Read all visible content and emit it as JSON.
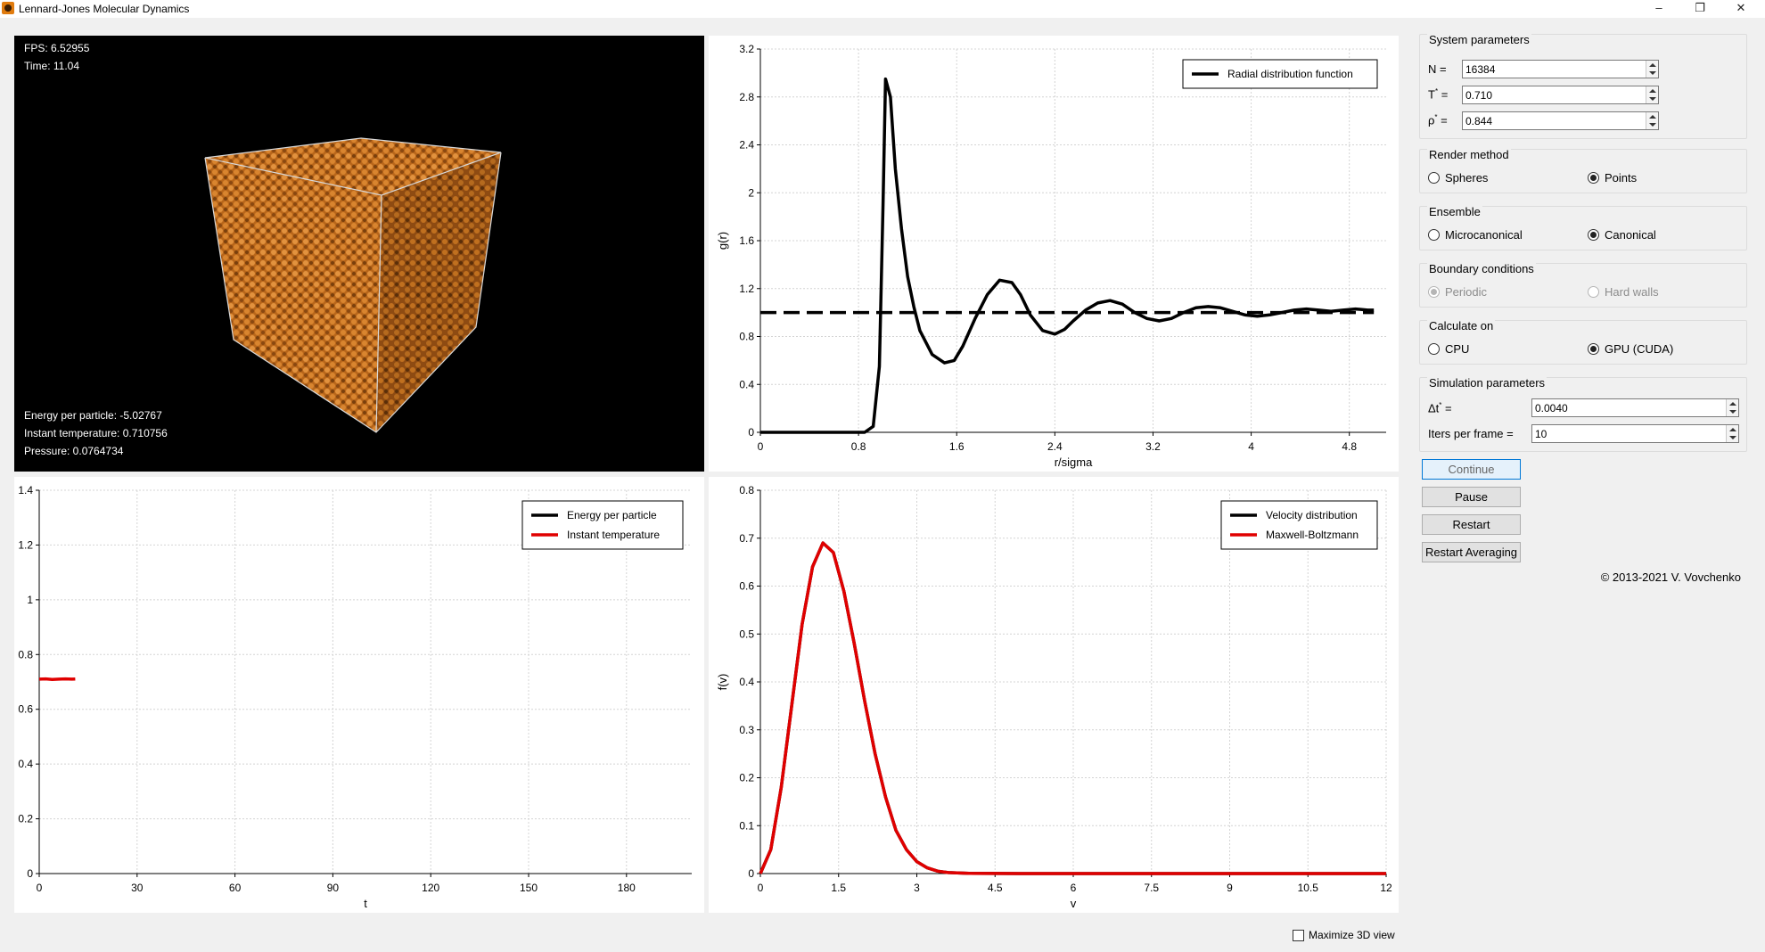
{
  "window": {
    "title": "Lennard-Jones Molecular Dynamics",
    "minimize_glyph": "–",
    "restore_glyph": "❐",
    "close_glyph": "✕"
  },
  "view3d": {
    "fps_text": "FPS: 6.52955",
    "time_text": "Time: 11.04",
    "energy_text": "Energy per particle: -5.02767",
    "temperature_text": "Instant temperature: 0.710756",
    "pressure_text": "Pressure: 0.0764734",
    "particle_color": "#c8761f"
  },
  "controls": {
    "system": {
      "title": "System parameters",
      "n_label": "N =",
      "n_value": "16384",
      "t_label": "T",
      "t_suffix": " =",
      "t_value": "0.710",
      "rho_label": "ρ",
      "rho_suffix": " =",
      "rho_value": "0.844",
      "star": "*"
    },
    "render": {
      "title": "Render method",
      "opt1": "Spheres",
      "opt2": "Points",
      "selected": 2
    },
    "ensemble": {
      "title": "Ensemble",
      "opt1": "Microcanonical",
      "opt2": "Canonical",
      "selected": 2
    },
    "boundary": {
      "title": "Boundary conditions",
      "opt1": "Periodic",
      "opt2": "Hard walls",
      "selected": 1
    },
    "calc": {
      "title": "Calculate on",
      "opt1": "CPU",
      "opt2": "GPU (CUDA)",
      "selected": 2
    },
    "sim": {
      "title": "Simulation parameters",
      "dt_label": "Δt",
      "dt_suffix": " =",
      "dt_value": "0.0040",
      "iters_label": "Iters per frame =",
      "iters_value": "10"
    },
    "buttons": {
      "continue": "Continue",
      "pause": "Pause",
      "restart": "Restart",
      "restart_avg": "Restart Averaging"
    },
    "copyright": "© 2013-2021 V. Vovchenko",
    "maximize_label": "Maximize 3D view"
  },
  "chart_data": [
    {
      "id": "rdf",
      "type": "line",
      "xlabel": "r/sigma",
      "ylabel": "g(r)",
      "xlim": [
        0,
        5.1
      ],
      "ylim": [
        0,
        3.2
      ],
      "xticks": [
        0,
        0.8,
        1.6,
        2.4,
        3.2,
        4,
        4.8
      ],
      "xtick_labels": [
        "0",
        "0.8",
        "1.6",
        "2.4",
        "3.2",
        "4",
        "4.8"
      ],
      "yticks": [
        0,
        0.4,
        0.8,
        1.2,
        1.6,
        2,
        2.4,
        2.8,
        3.2
      ],
      "ytick_labels": [
        "0",
        "0.4",
        "0.8",
        "1.2",
        "1.6",
        "2",
        "2.4",
        "2.8",
        "3.2"
      ],
      "legend": "top-right",
      "grid": true,
      "series": [
        {
          "name": "Radial distribution function",
          "color": "#000000",
          "style": "solid",
          "x": [
            0,
            0.85,
            0.92,
            0.97,
            1.0,
            1.02,
            1.06,
            1.1,
            1.15,
            1.2,
            1.25,
            1.3,
            1.4,
            1.5,
            1.58,
            1.65,
            1.75,
            1.85,
            1.95,
            2.05,
            2.12,
            2.2,
            2.3,
            2.4,
            2.48,
            2.55,
            2.65,
            2.75,
            2.85,
            2.95,
            3.05,
            3.15,
            3.25,
            3.35,
            3.45,
            3.55,
            3.65,
            3.75,
            3.85,
            3.95,
            4.05,
            4.15,
            4.25,
            4.35,
            4.45,
            4.55,
            4.65,
            4.75,
            4.85,
            4.95,
            5.0
          ],
          "y": [
            0,
            0,
            0.05,
            0.55,
            1.9,
            2.95,
            2.8,
            2.2,
            1.7,
            1.3,
            1.05,
            0.85,
            0.65,
            0.58,
            0.6,
            0.72,
            0.95,
            1.15,
            1.27,
            1.25,
            1.15,
            0.98,
            0.85,
            0.82,
            0.86,
            0.93,
            1.02,
            1.08,
            1.1,
            1.07,
            1.0,
            0.95,
            0.93,
            0.95,
            1.0,
            1.04,
            1.05,
            1.04,
            1.01,
            0.98,
            0.97,
            0.98,
            1.0,
            1.02,
            1.03,
            1.02,
            1.01,
            1.02,
            1.03,
            1.02,
            1.02
          ]
        },
        {
          "name": "",
          "color": "#000000",
          "style": "dashed",
          "x": [
            0,
            5.0
          ],
          "y": [
            1,
            1
          ]
        }
      ]
    },
    {
      "id": "energy",
      "type": "line",
      "xlabel": "t",
      "ylabel": "",
      "xlim": [
        0,
        200
      ],
      "ylim": [
        0,
        1.4
      ],
      "xticks": [
        0,
        30,
        60,
        90,
        120,
        150,
        180
      ],
      "xtick_labels": [
        "0",
        "30",
        "60",
        "90",
        "120",
        "150",
        "180"
      ],
      "yticks": [
        0,
        0.2,
        0.4,
        0.6,
        0.8,
        1,
        1.2,
        1.4
      ],
      "ytick_labels": [
        "0",
        "0.2",
        "0.4",
        "0.6",
        "0.8",
        "1",
        "1.2",
        "1.4"
      ],
      "legend": "top-right",
      "grid": true,
      "series": [
        {
          "name": "Energy per particle",
          "color": "#000000",
          "style": "solid",
          "x": [],
          "y": []
        },
        {
          "name": "Instant temperature",
          "color": "#e00000",
          "style": "solid",
          "x": [
            0,
            2,
            4,
            6,
            8,
            10,
            11.04
          ],
          "y": [
            0.71,
            0.711,
            0.709,
            0.71,
            0.711,
            0.71,
            0.7108
          ]
        }
      ]
    },
    {
      "id": "velocity",
      "type": "line",
      "xlabel": "v",
      "ylabel": "f(v)",
      "xlim": [
        0,
        12
      ],
      "ylim": [
        0,
        0.8
      ],
      "xticks": [
        0,
        1.5,
        3,
        4.5,
        6,
        7.5,
        9,
        10.5,
        12
      ],
      "xtick_labels": [
        "0",
        "1.5",
        "3",
        "4.5",
        "6",
        "7.5",
        "9",
        "10.5",
        "12"
      ],
      "yticks": [
        0,
        0.1,
        0.2,
        0.3,
        0.4,
        0.5,
        0.6,
        0.7,
        0.8
      ],
      "ytick_labels": [
        "0",
        "0.1",
        "0.2",
        "0.3",
        "0.4",
        "0.5",
        "0.6",
        "0.7",
        "0.8"
      ],
      "legend": "top-right",
      "grid": true,
      "series": [
        {
          "name": "Velocity distribution",
          "color": "#000000",
          "style": "solid",
          "x": [
            0,
            0.2,
            0.4,
            0.6,
            0.8,
            1.0,
            1.2,
            1.4,
            1.6,
            1.8,
            2.0,
            2.2,
            2.4,
            2.6,
            2.8,
            3.0,
            3.2,
            3.4,
            3.6,
            4.0,
            5,
            6,
            8,
            10,
            12
          ],
          "y": [
            0,
            0.05,
            0.18,
            0.35,
            0.52,
            0.64,
            0.69,
            0.67,
            0.59,
            0.48,
            0.36,
            0.25,
            0.16,
            0.09,
            0.05,
            0.025,
            0.012,
            0.005,
            0.002,
            0.0003,
            0,
            0,
            0,
            0,
            0
          ]
        },
        {
          "name": "Maxwell-Boltzmann",
          "color": "#e00000",
          "style": "solid",
          "x": [
            0,
            0.2,
            0.4,
            0.6,
            0.8,
            1.0,
            1.2,
            1.4,
            1.6,
            1.8,
            2.0,
            2.2,
            2.4,
            2.6,
            2.8,
            3.0,
            3.2,
            3.4,
            3.6,
            4.0,
            5,
            6,
            8,
            10,
            12
          ],
          "y": [
            0,
            0.05,
            0.18,
            0.35,
            0.52,
            0.64,
            0.69,
            0.67,
            0.59,
            0.48,
            0.36,
            0.25,
            0.16,
            0.09,
            0.05,
            0.025,
            0.012,
            0.005,
            0.002,
            0.0003,
            0,
            0,
            0,
            0,
            0
          ]
        }
      ]
    }
  ]
}
